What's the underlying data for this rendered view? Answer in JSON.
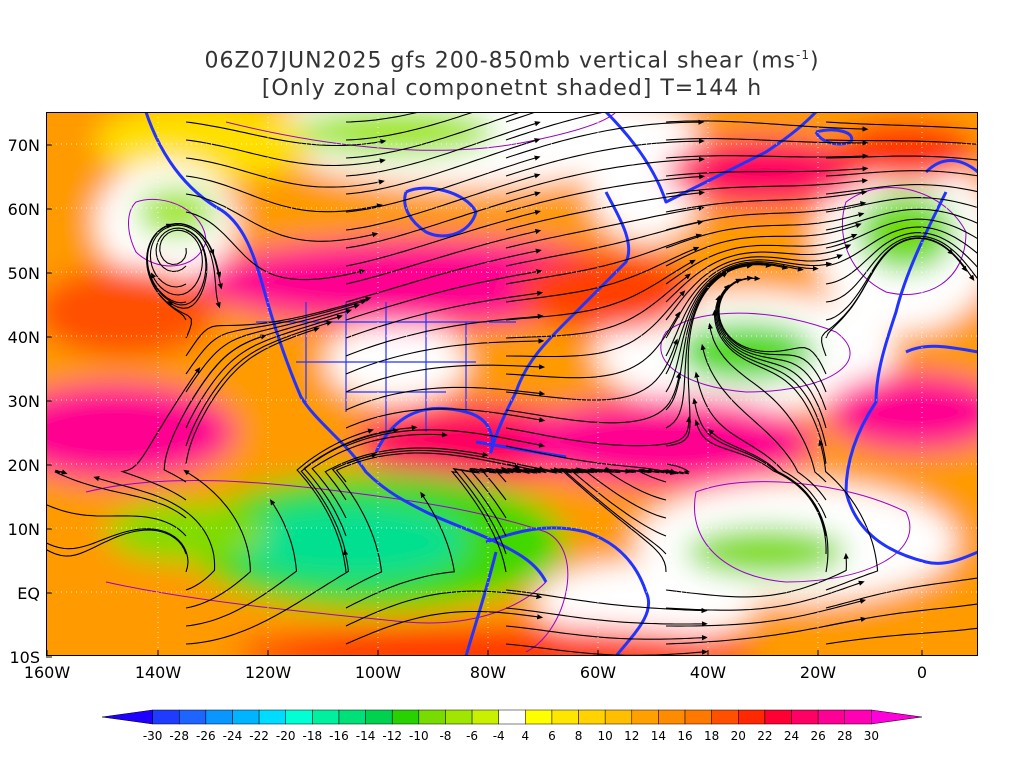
{
  "title": {
    "line1_prefix": "06Z07JUN2025 gfs 200-850mb vertical shear (ms",
    "line1_sup": "-1",
    "line1_suffix": ")",
    "line2": "[Only zonal componetnt shaded] T=144 h"
  },
  "axes": {
    "lat_ticks": [
      "70N",
      "60N",
      "50N",
      "40N",
      "30N",
      "20N",
      "10N",
      "EQ",
      "10S"
    ],
    "lon_ticks": [
      "160W",
      "140W",
      "120W",
      "100W",
      "80W",
      "60W",
      "40W",
      "20W",
      "0"
    ]
  },
  "colorbar": {
    "labels": [
      "-30",
      "-28",
      "-26",
      "-24",
      "-22",
      "-20",
      "-18",
      "-16",
      "-14",
      "-12",
      "-10",
      "-8",
      "-6",
      "-4",
      "4",
      "6",
      "8",
      "10",
      "12",
      "14",
      "16",
      "18",
      "20",
      "22",
      "24",
      "26",
      "28",
      "30"
    ],
    "colors": [
      "#1e00ff",
      "#1e3cff",
      "#1e64ff",
      "#0a96ff",
      "#00b4ff",
      "#00dcff",
      "#00ffd2",
      "#00f0a0",
      "#00e078",
      "#00d250",
      "#28d200",
      "#78dc00",
      "#a0e600",
      "#c8f000",
      "#ffffff",
      "#ffff00",
      "#ffe600",
      "#ffd200",
      "#ffbe00",
      "#ffa000",
      "#ff8c00",
      "#ff7800",
      "#ff5000",
      "#ff2800",
      "#ff0032",
      "#ff0064",
      "#ff0096",
      "#ff00b4",
      "#ff00dc"
    ]
  },
  "map_colors": {
    "coast": "#2233ff",
    "streamline": "#000000",
    "contour": "#9900cc"
  }
}
